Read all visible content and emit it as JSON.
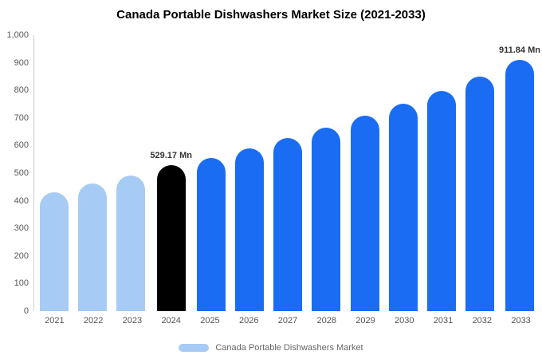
{
  "chart_data": {
    "type": "bar",
    "title": "Canada Portable Dishwashers Market Size (2021-2033)",
    "categories": [
      "2021",
      "2022",
      "2023",
      "2024",
      "2025",
      "2026",
      "2027",
      "2028",
      "2029",
      "2030",
      "2031",
      "2032",
      "2033"
    ],
    "values": [
      430,
      462,
      490,
      529.17,
      555,
      590,
      627,
      665,
      707,
      752,
      797,
      850,
      911.84
    ],
    "unit": "Mn",
    "ylim": [
      0,
      1000
    ],
    "y_tick_step": 100,
    "y_tick_labels": [
      "0",
      "100",
      "200",
      "300",
      "400",
      "500",
      "600",
      "700",
      "800",
      "900",
      "1,000"
    ],
    "grid": false,
    "legend": "Canada Portable Dishwashers Market",
    "legend_position": "bottom",
    "colors": {
      "historical": "#a6cbf5",
      "base_year": "#000000",
      "forecast": "#1a6df2"
    },
    "bar_colors": [
      "#a6cbf5",
      "#a6cbf5",
      "#a6cbf5",
      "#000000",
      "#1a6df2",
      "#1a6df2",
      "#1a6df2",
      "#1a6df2",
      "#1a6df2",
      "#1a6df2",
      "#1a6df2",
      "#1a6df2",
      "#1a6df2"
    ],
    "annotations": [
      {
        "category": "2024",
        "text": "529.17 Mn"
      },
      {
        "category": "2033",
        "text": "911.84 Mn"
      }
    ]
  }
}
